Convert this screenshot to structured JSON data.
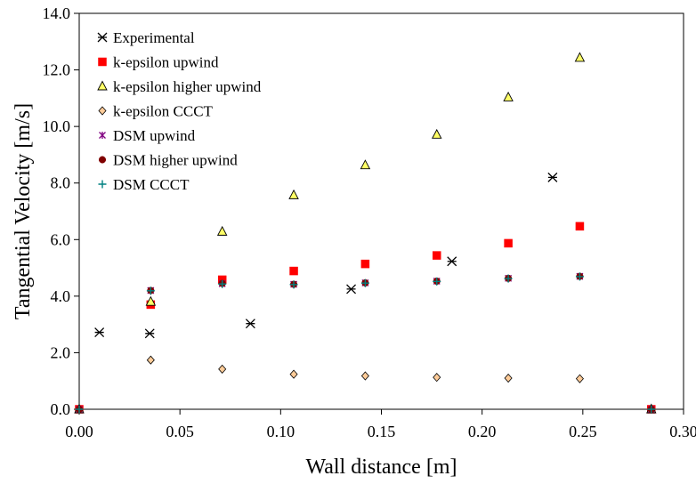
{
  "chart_data": {
    "type": "scatter",
    "title": "",
    "xlabel": "Wall distance [m]",
    "ylabel": "Tangential Velocity [m/s]",
    "xlim": [
      0.0,
      0.3
    ],
    "ylim": [
      0.0,
      14.0
    ],
    "x_ticks": [
      0.0,
      0.05,
      0.1,
      0.15,
      0.2,
      0.25,
      0.3
    ],
    "y_ticks": [
      0.0,
      2.0,
      4.0,
      6.0,
      8.0,
      10.0,
      12.0,
      14.0
    ],
    "x_tick_labels": [
      "0.00",
      "0.05",
      "0.10",
      "0.15",
      "0.20",
      "0.25",
      "0.30"
    ],
    "y_tick_labels": [
      "0.0",
      "2.0",
      "4.0",
      "6.0",
      "8.0",
      "10.0",
      "12.0",
      "14.0"
    ],
    "grid": false,
    "legend_position": "top-left",
    "series": [
      {
        "name": "Experimental",
        "marker": "star-cross",
        "color": "#000000",
        "points": [
          [
            0.01,
            2.72
          ],
          [
            0.035,
            2.68
          ],
          [
            0.085,
            3.03
          ],
          [
            0.135,
            4.25
          ],
          [
            0.185,
            5.23
          ],
          [
            0.235,
            8.2
          ]
        ]
      },
      {
        "name": "k-epsilon upwind",
        "marker": "square",
        "color": "#ff0000",
        "points": [
          [
            0.0,
            0.0
          ],
          [
            0.0355,
            3.7
          ],
          [
            0.071,
            4.58
          ],
          [
            0.1065,
            4.89
          ],
          [
            0.142,
            5.14
          ],
          [
            0.1775,
            5.44
          ],
          [
            0.213,
            5.87
          ],
          [
            0.2485,
            6.47
          ],
          [
            0.284,
            0.0
          ]
        ]
      },
      {
        "name": "k-epsilon higher upwind",
        "marker": "triangle",
        "color": "#ffff66",
        "points": [
          [
            0.0,
            0.0
          ],
          [
            0.0355,
            3.8
          ],
          [
            0.071,
            6.28
          ],
          [
            0.1065,
            7.57
          ],
          [
            0.142,
            8.63
          ],
          [
            0.1775,
            9.71
          ],
          [
            0.213,
            11.03
          ],
          [
            0.2485,
            12.43
          ],
          [
            0.284,
            0.0
          ]
        ]
      },
      {
        "name": "k-epsilon CCCT",
        "marker": "diamond",
        "color": "#ffcc99",
        "points": [
          [
            0.0,
            0.0
          ],
          [
            0.0355,
            1.74
          ],
          [
            0.071,
            1.42
          ],
          [
            0.1065,
            1.24
          ],
          [
            0.142,
            1.18
          ],
          [
            0.1775,
            1.13
          ],
          [
            0.213,
            1.1
          ],
          [
            0.2485,
            1.08
          ],
          [
            0.284,
            0.0
          ]
        ]
      },
      {
        "name": "DSM upwind",
        "marker": "asterisk",
        "color": "#800080",
        "points": [
          [
            0.0,
            0.0
          ],
          [
            0.0355,
            4.2
          ],
          [
            0.071,
            4.44
          ],
          [
            0.1065,
            4.42
          ],
          [
            0.142,
            4.47
          ],
          [
            0.1775,
            4.53
          ],
          [
            0.213,
            4.63
          ],
          [
            0.2485,
            4.7
          ],
          [
            0.284,
            0.0
          ]
        ]
      },
      {
        "name": "DSM higher upwind",
        "marker": "circle",
        "color": "#800000",
        "points": [
          [
            0.0,
            0.0
          ],
          [
            0.0355,
            4.2
          ],
          [
            0.071,
            4.45
          ],
          [
            0.1065,
            4.42
          ],
          [
            0.142,
            4.47
          ],
          [
            0.1775,
            4.53
          ],
          [
            0.213,
            4.63
          ],
          [
            0.2485,
            4.7
          ],
          [
            0.284,
            0.0
          ]
        ]
      },
      {
        "name": "DSM CCCT",
        "marker": "plus",
        "color": "#008080",
        "points": [
          [
            0.0,
            0.0
          ],
          [
            0.0355,
            4.19
          ],
          [
            0.071,
            4.43
          ],
          [
            0.1065,
            4.41
          ],
          [
            0.142,
            4.46
          ],
          [
            0.1775,
            4.52
          ],
          [
            0.213,
            4.62
          ],
          [
            0.2485,
            4.69
          ],
          [
            0.284,
            0.0
          ]
        ]
      }
    ]
  }
}
